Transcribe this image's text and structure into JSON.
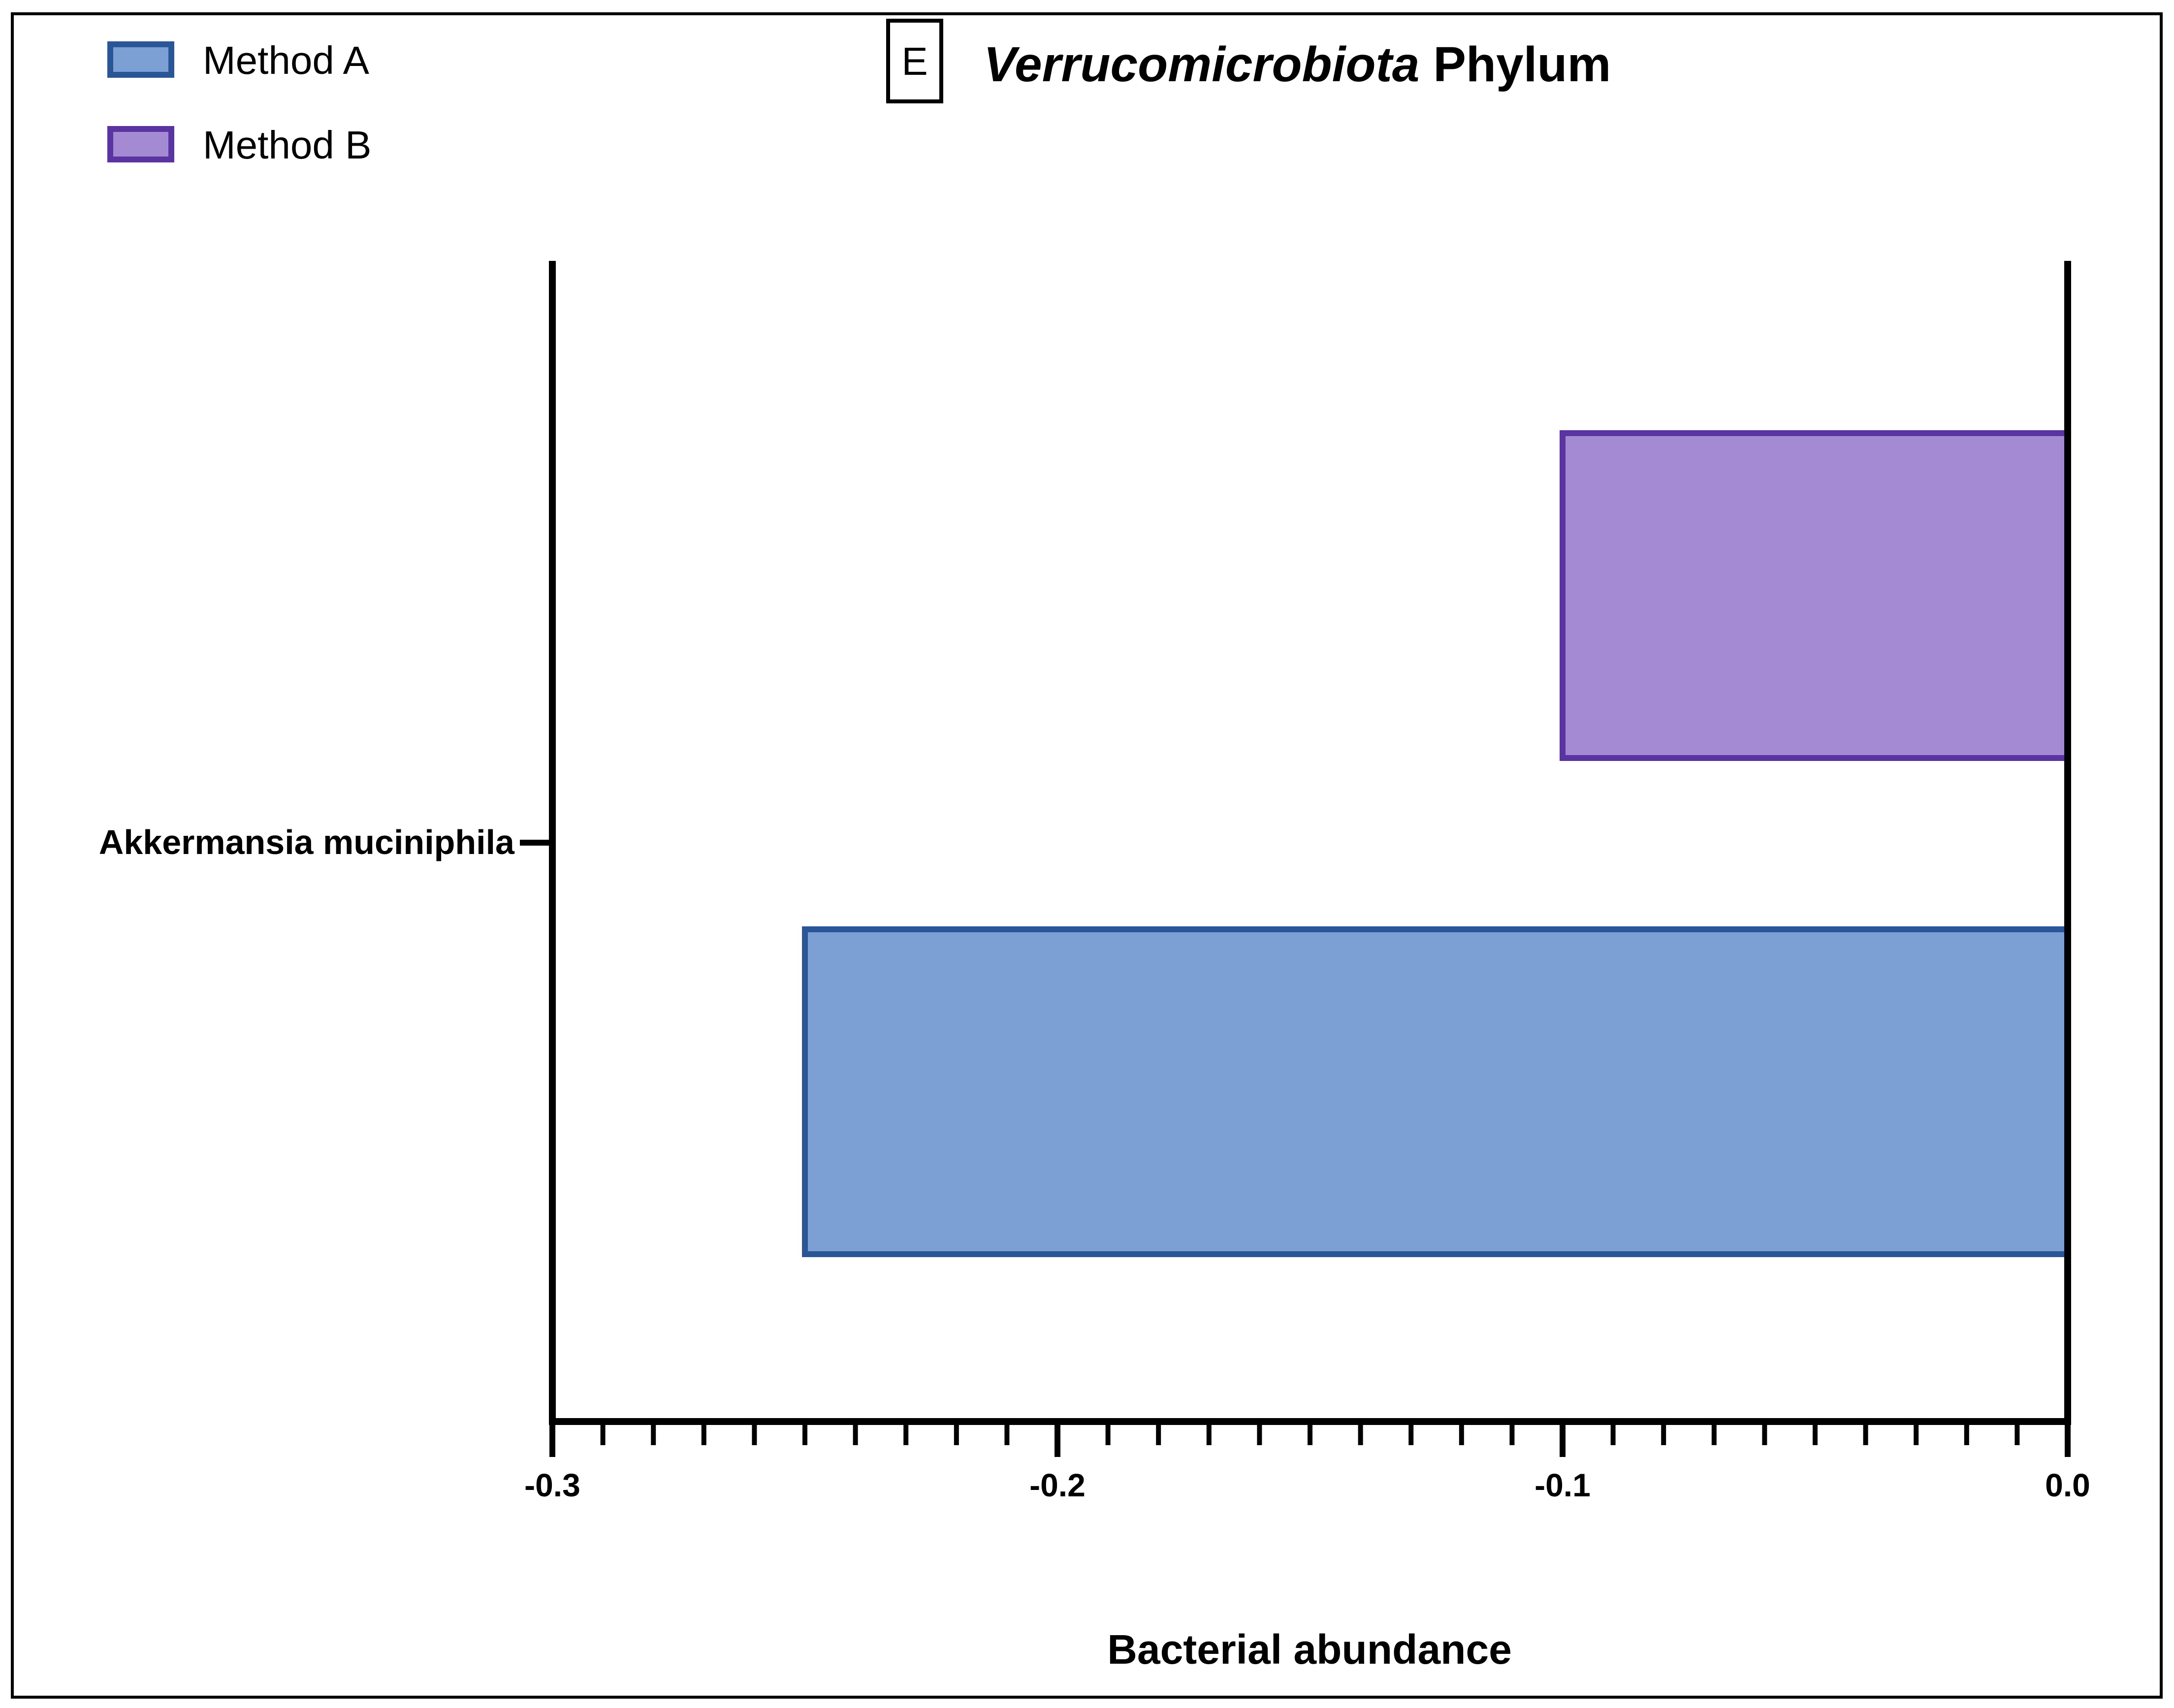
{
  "chart_data": {
    "type": "bar",
    "orientation": "horizontal",
    "panel_label": "E",
    "title": "Phylum",
    "title_italic": "Verrucomicrobiota",
    "xlabel": "Bacterial abundance",
    "ylabel": "",
    "xlim": [
      -0.3,
      0.0
    ],
    "x_ticks": [
      "-0.3",
      "-0.2",
      "-0.1",
      "0.0"
    ],
    "categories": [
      "Akkermansia muciniphila"
    ],
    "series": [
      {
        "name": "Method A",
        "values": [
          -0.25
        ],
        "fill": "#7da0d4",
        "stroke": "#2a5596"
      },
      {
        "name": "Method B",
        "values": [
          -0.1
        ],
        "fill": "#a48ad2",
        "stroke": "#5a34a0"
      }
    ],
    "legend_position": "top-left",
    "grid": false
  }
}
